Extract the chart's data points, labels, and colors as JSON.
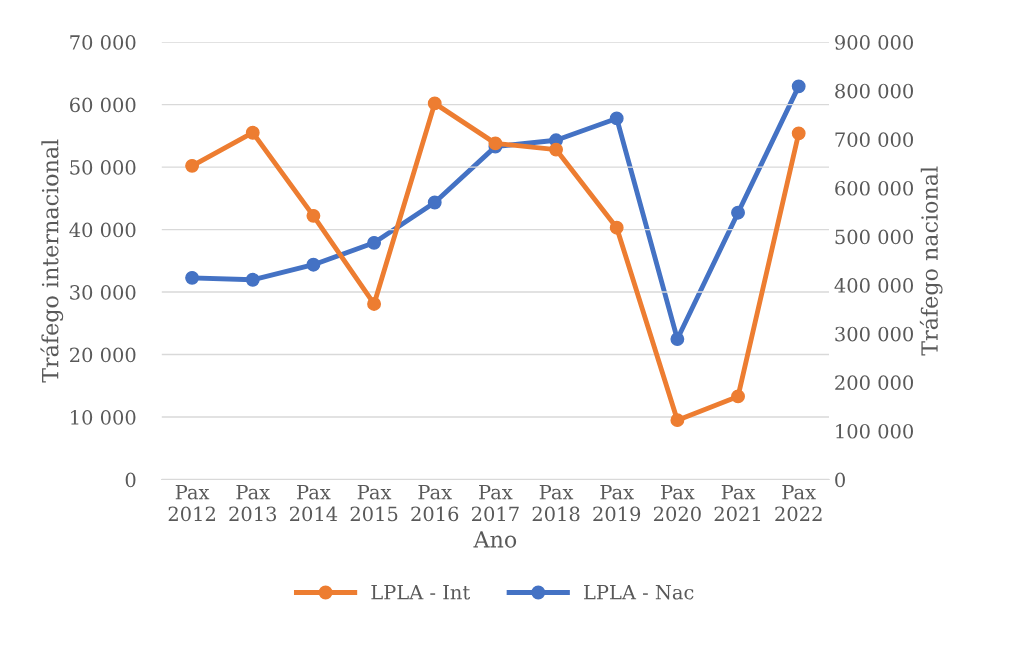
{
  "chart_data": {
    "type": "line",
    "xlabel": "Ano",
    "ylabel": "Tráfego internacional",
    "y2label": "Tráfego nacional",
    "categories": [
      "Pax\n2012",
      "Pax\n2013",
      "Pax\n2014",
      "Pax\n2015",
      "Pax\n2016",
      "Pax\n2017",
      "Pax\n2018",
      "Pax\n2019",
      "Pax\n2020",
      "Pax\n2021",
      "Pax\n2022"
    ],
    "series": [
      {
        "name": "LPLA - Int",
        "color": "#ed7d31",
        "values": [
          50200,
          55500,
          42200,
          28100,
          60200,
          53800,
          52800,
          40300,
          9500,
          13300,
          55400
        ]
      },
      {
        "name": "LPLA - Nac",
        "color": "#4472c4",
        "axis": "y2",
        "values": [
          415000,
          411000,
          442000,
          487000,
          570000,
          685000,
          698000,
          743000,
          289000,
          549000,
          809000
        ]
      }
    ],
    "ylim": [
      0,
      70000
    ],
    "yticks": [
      {
        "value": 0,
        "label": "0"
      },
      {
        "value": 10000,
        "label": "10 000"
      },
      {
        "value": 20000,
        "label": "20 000"
      },
      {
        "value": 30000,
        "label": "30 000"
      },
      {
        "value": 40000,
        "label": "40 000"
      },
      {
        "value": 50000,
        "label": "50 000"
      },
      {
        "value": 60000,
        "label": "60 000"
      },
      {
        "value": 70000,
        "label": "70 000"
      }
    ],
    "y2lim": [
      0,
      900000
    ],
    "y2ticks": [
      {
        "value": 0,
        "label": "0"
      },
      {
        "value": 100000,
        "label": "100 000"
      },
      {
        "value": 200000,
        "label": "200 000"
      },
      {
        "value": 300000,
        "label": "300 000"
      },
      {
        "value": 400000,
        "label": "400 000"
      },
      {
        "value": 500000,
        "label": "500 000"
      },
      {
        "value": 600000,
        "label": "600 000"
      },
      {
        "value": 700000,
        "label": "700 000"
      },
      {
        "value": 800000,
        "label": "800 000"
      },
      {
        "value": 900000,
        "label": "900 000"
      }
    ],
    "grid": "y",
    "legend": "bottom",
    "marker": "circle",
    "line_style": "solid"
  }
}
